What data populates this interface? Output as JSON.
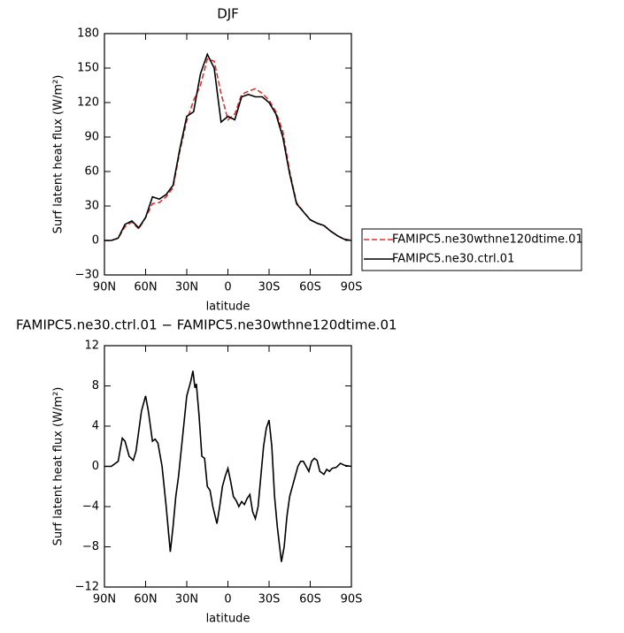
{
  "chart_data": [
    {
      "type": "line",
      "title": "DJF",
      "xlabel": "latitude",
      "ylabel": "Surf latent heat flux (W/m²)",
      "x": [
        90,
        85,
        80,
        75,
        70,
        65,
        60,
        55,
        50,
        45,
        40,
        35,
        30,
        25,
        20,
        15,
        10,
        5,
        0,
        -5,
        -10,
        -15,
        -20,
        -25,
        -30,
        -35,
        -40,
        -45,
        -50,
        -55,
        -60,
        -65,
        -70,
        -75,
        -80,
        -85,
        -90
      ],
      "series": [
        {
          "name": "FAMIPC5.ne30wthne120dtime.01",
          "color": "#e0302a",
          "dash": "dashed",
          "values": [
            0,
            0,
            2,
            12,
            16,
            10,
            20,
            32,
            33,
            38,
            46,
            78,
            104,
            122,
            135,
            158,
            156,
            128,
            105,
            110,
            127,
            130,
            132,
            128,
            122,
            112,
            95,
            60,
            33,
            25,
            18,
            15,
            13,
            8,
            4,
            1,
            0
          ]
        },
        {
          "name": "FAMIPC5.ne30.ctrl.01",
          "color": "#000000",
          "dash": "solid",
          "values": [
            0,
            0,
            2,
            14,
            17,
            11,
            20,
            38,
            36,
            40,
            48,
            80,
            108,
            112,
            145,
            162,
            150,
            103,
            108,
            105,
            125,
            127,
            125,
            125,
            120,
            110,
            90,
            58,
            32,
            25,
            18,
            15,
            13,
            8,
            4,
            1,
            0
          ]
        }
      ],
      "xlim": [
        90,
        -90
      ],
      "ylim": [
        -30,
        180
      ],
      "xticks": [
        {
          "value": 90,
          "label": "90N"
        },
        {
          "value": 60,
          "label": "60N"
        },
        {
          "value": 30,
          "label": "30N"
        },
        0,
        {
          "value": -30,
          "label": "30S"
        },
        {
          "value": -60,
          "label": "60S"
        },
        {
          "value": -90,
          "label": "90S"
        }
      ],
      "yticks": [
        {
          "value": -30,
          "label": "−30"
        },
        0,
        30,
        60,
        90,
        120,
        150,
        180
      ],
      "legend": "right"
    },
    {
      "type": "line",
      "title": "FAMIPC5.ne30.ctrl.01 − FAMIPC5.ne30wthne120dtime.01",
      "xlabel": "latitude",
      "ylabel": "Surf latent heat flux (W/m²)",
      "x": [
        90,
        85,
        80,
        77,
        75,
        72,
        69,
        67,
        63,
        60,
        58,
        55,
        53,
        51,
        48,
        45,
        42,
        40,
        38,
        36,
        33,
        30,
        27,
        25.5,
        24,
        23,
        21,
        19,
        17,
        15,
        13,
        11,
        8,
        6,
        4,
        2,
        0,
        -2,
        -4,
        -6,
        -8,
        -10,
        -12,
        -14,
        -16,
        -18,
        -20,
        -22,
        -24,
        -26,
        -28,
        -30,
        -32,
        -34,
        -36,
        -39,
        -41,
        -43,
        -45,
        -47,
        -49,
        -51,
        -53,
        -55,
        -57,
        -59,
        -61,
        -63,
        -65,
        -67,
        -70,
        -72,
        -74,
        -76,
        -79,
        -82,
        -85,
        -90
      ],
      "series": [
        {
          "color": "#000000",
          "values": [
            0,
            0,
            0.5,
            2.8,
            2.5,
            1,
            0.6,
            1.5,
            5.5,
            7,
            5.5,
            2.5,
            2.7,
            2.3,
            0,
            -4,
            -8.5,
            -6,
            -3,
            -1,
            3,
            7,
            8.5,
            9.5,
            7.8,
            8.2,
            5,
            1,
            0.8,
            -2,
            -2.4,
            -4,
            -5.7,
            -4,
            -2,
            -1,
            -0.2,
            -1.5,
            -3,
            -3.4,
            -4,
            -3.5,
            -3.8,
            -3.2,
            -2.8,
            -4.5,
            -5.2,
            -4,
            -1,
            2,
            3.8,
            4.6,
            2,
            -3,
            -6,
            -9.5,
            -8,
            -5,
            -3,
            -2,
            -1,
            0,
            0.5,
            0.5,
            0,
            -0.5,
            0.5,
            0.8,
            0.6,
            -0.5,
            -0.8,
            -0.3,
            -0.5,
            -0.2,
            -0.1,
            0.3,
            0.1,
            0
          ]
        }
      ],
      "xlim": [
        90,
        -90
      ],
      "ylim": [
        -12,
        12
      ],
      "xticks": [
        {
          "value": 90,
          "label": "90N"
        },
        {
          "value": 60,
          "label": "60N"
        },
        {
          "value": 30,
          "label": "30N"
        },
        0,
        {
          "value": -30,
          "label": "30S"
        },
        {
          "value": -60,
          "label": "60S"
        },
        {
          "value": -90,
          "label": "90S"
        }
      ],
      "yticks": [
        {
          "value": -12,
          "label": "−12"
        },
        {
          "value": -8,
          "label": "−8"
        },
        {
          "value": -4,
          "label": "−4"
        },
        0,
        4,
        8,
        12
      ]
    }
  ]
}
